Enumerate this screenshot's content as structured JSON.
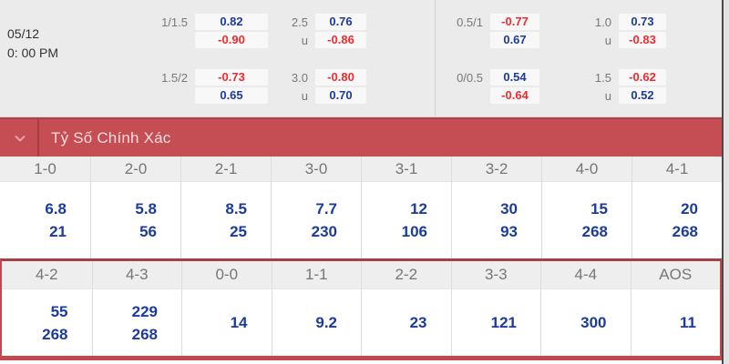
{
  "header": {
    "date": "05/12",
    "time": "0: 00 PM"
  },
  "top_odds": {
    "groups": [
      {
        "cols": [
          {
            "rows": [
              {
                "label": "1/1.5",
                "value": "0.82"
              },
              {
                "label": "",
                "value": "-0.90"
              },
              {
                "label": "1.5/2",
                "value": "-0.73"
              },
              {
                "label": "",
                "value": "0.65"
              }
            ]
          },
          {
            "rows": [
              {
                "label": "2.5",
                "value": "0.76"
              },
              {
                "label": "u",
                "value": "-0.86"
              },
              {
                "label": "3.0",
                "value": "-0.80"
              },
              {
                "label": "u",
                "value": "0.70"
              }
            ]
          }
        ]
      },
      {
        "cols": [
          {
            "rows": [
              {
                "label": "0.5/1",
                "value": "-0.77"
              },
              {
                "label": "",
                "value": "0.67"
              },
              {
                "label": "0/0.5",
                "value": "0.54"
              },
              {
                "label": "",
                "value": "-0.64"
              }
            ]
          },
          {
            "rows": [
              {
                "label": "1.0",
                "value": "0.73"
              },
              {
                "label": "u",
                "value": "-0.83"
              },
              {
                "label": "1.5",
                "value": "-0.62"
              },
              {
                "label": "u",
                "value": "0.52"
              }
            ]
          }
        ]
      }
    ]
  },
  "section": {
    "title": "Tỷ Số Chính Xác",
    "collapse_icon": "chevron-down-icon"
  },
  "score_table": {
    "groups": [
      {
        "columns": [
          {
            "score": "1-0",
            "odds": [
              "6.8",
              "21"
            ]
          },
          {
            "score": "2-0",
            "odds": [
              "5.8",
              "56"
            ]
          },
          {
            "score": "2-1",
            "odds": [
              "8.5",
              "25"
            ]
          },
          {
            "score": "3-0",
            "odds": [
              "7.7",
              "230"
            ]
          },
          {
            "score": "3-1",
            "odds": [
              "12",
              "106"
            ]
          },
          {
            "score": "3-2",
            "odds": [
              "30",
              "93"
            ]
          },
          {
            "score": "4-0",
            "odds": [
              "15",
              "268"
            ]
          },
          {
            "score": "4-1",
            "odds": [
              "20",
              "268"
            ]
          }
        ]
      },
      {
        "columns": [
          {
            "score": "4-2",
            "odds": [
              "55",
              "268"
            ]
          },
          {
            "score": "4-3",
            "odds": [
              "229",
              "268"
            ]
          },
          {
            "score": "0-0",
            "odds": [
              "14"
            ]
          },
          {
            "score": "1-1",
            "odds": [
              "9.2"
            ]
          },
          {
            "score": "2-2",
            "odds": [
              "23"
            ]
          },
          {
            "score": "3-3",
            "odds": [
              "121"
            ]
          },
          {
            "score": "4-4",
            "odds": [
              "300"
            ]
          },
          {
            "score": "AOS",
            "odds": [
              "11"
            ]
          }
        ]
      }
    ]
  },
  "colors": {
    "section_bar_red": "#c44e53",
    "section_bar_dark_red": "#a83d42",
    "frame_red": "#c2484d",
    "odds_positive_blue": "#1c3b9e",
    "odds_negative_red": "#ee2b2e",
    "header_text_gray": "#767676",
    "top_strip_gray": "#ebebeb"
  }
}
